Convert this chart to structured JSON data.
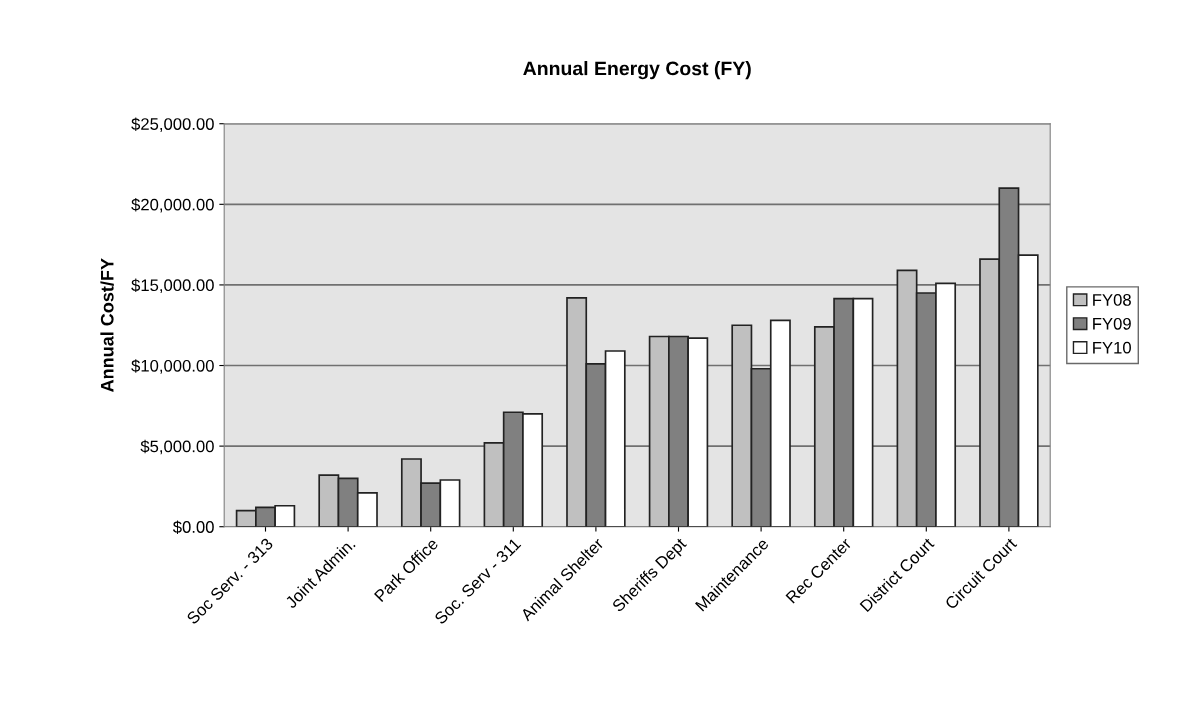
{
  "chart_data": {
    "type": "bar",
    "title": "Annual Energy Cost (FY)",
    "ylabel": "Annual Cost/FY",
    "categories": [
      "Soc Serv. - 313",
      "Joint Admin.",
      "Park Office",
      "Soc. Serv - 311",
      "Animal Shelter",
      "Sheriffs Dept",
      "Maintenance",
      "Rec Center",
      "District Court",
      "Circuit Court"
    ],
    "series": [
      {
        "name": "FY08",
        "color": "#c0c0c0",
        "values": [
          1000,
          3200,
          4200,
          5200,
          14200,
          11800,
          12500,
          12400,
          15900,
          16600
        ]
      },
      {
        "name": "FY09",
        "color": "#808080",
        "values": [
          1200,
          3000,
          2700,
          7100,
          10100,
          11800,
          9800,
          14150,
          14500,
          21000
        ]
      },
      {
        "name": "FY10",
        "color": "#ffffff",
        "values": [
          1300,
          2100,
          2900,
          7000,
          10900,
          11700,
          12800,
          14150,
          15100,
          16850
        ]
      }
    ],
    "ylim": [
      0,
      25000
    ],
    "yticks": [
      {
        "value": 0,
        "label": "$0.00"
      },
      {
        "value": 5000,
        "label": "$5,000.00"
      },
      {
        "value": 10000,
        "label": "$10,000.00"
      },
      {
        "value": 15000,
        "label": "$15,000.00"
      },
      {
        "value": 20000,
        "label": "$20,000.00"
      },
      {
        "value": 25000,
        "label": "$25,000.00"
      }
    ],
    "grid": "y",
    "legend": "right"
  }
}
